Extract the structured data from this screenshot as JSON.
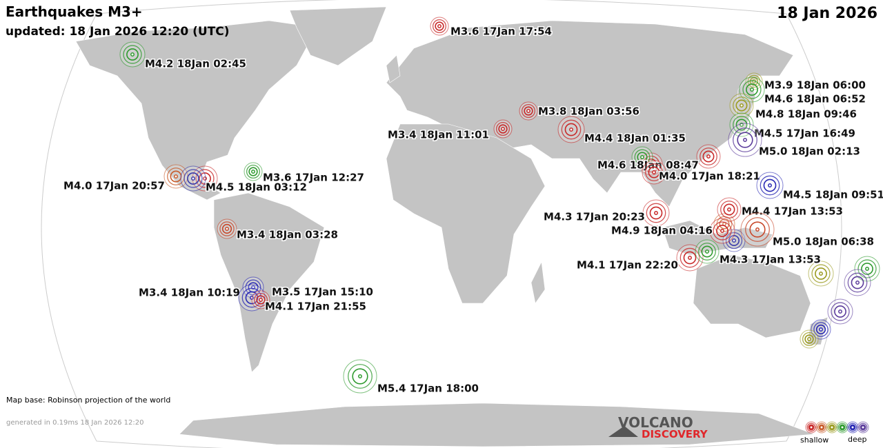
{
  "header": {
    "title": "Earthquakes M3+",
    "updated": "updated: 18 Jan 2026 12:20 (UTC)",
    "date": "18 Jan 2026"
  },
  "quakes": [
    {
      "label": "M3.6 17Jan 17:54",
      "color": "#c82828"
    },
    {
      "label": "M4.2 18Jan 02:45",
      "color": "#2e9a2e"
    },
    {
      "label": "M3.9 18Jan 06:00",
      "color": "#9a9a1e"
    },
    {
      "label": "M4.6 18Jan 06:52",
      "color": "#2e9a2e"
    },
    {
      "label": "M4.8 18Jan 09:46",
      "color": "#9a9a1e"
    },
    {
      "label": "M3.8 18Jan 03:56",
      "color": "#c82828"
    },
    {
      "label": "M4.5 17Jan 16:49",
      "color": "#2e9a2e"
    },
    {
      "label": "M3.4 18Jan 11:01",
      "color": "#c82828"
    },
    {
      "label": "M4.4 18Jan 01:35",
      "color": "#c82828"
    },
    {
      "label": "M5.0 18Jan 02:13",
      "color": "#5a3a9a"
    },
    {
      "label": "M4.6 18Jan 08:47",
      "color": "#2e9a2e"
    },
    {
      "label": "M4.0 17Jan 18:21",
      "color": "#c82828"
    },
    {
      "label": "M3.6 17Jan 12:27",
      "color": "#2e9a2e"
    },
    {
      "label": "M4.0 17Jan 20:57",
      "color": "#c85a28"
    },
    {
      "label": "M4.5 18Jan 03:12",
      "color": "#3a3aaa"
    },
    {
      "label": "M4.5 18Jan 09:51",
      "color": "#2828b4"
    },
    {
      "label": "M4.4 17Jan 13:53",
      "color": "#c82828"
    },
    {
      "label": "M4.3 17Jan 20:23",
      "color": "#c82828"
    },
    {
      "label": "M3.4 18Jan 03:28",
      "color": "#c84628"
    },
    {
      "label": "M4.9 18Jan 04:16",
      "color": "#c82828"
    },
    {
      "label": "M5.0 18Jan 06:38",
      "color": "#c84628"
    },
    {
      "label": "M4.1 17Jan 22:20",
      "color": "#c82828"
    },
    {
      "label": "M4.3 17Jan 13:53",
      "color": "#2e9a2e"
    },
    {
      "label": "M3.4 18Jan 10:19",
      "color": "#2828b4"
    },
    {
      "label": "M3.5 17Jan 15:10",
      "color": "#2828b4"
    },
    {
      "label": "M4.1 17Jan 21:55",
      "color": "#c82828"
    },
    {
      "label": "M5.4 17Jan 18:00",
      "color": "#2e9a2e"
    }
  ],
  "footer": {
    "projection": "Map base: Robinson projection of the world",
    "generated": "generated in 0.19ms 18 Jan 2026 12:20",
    "logo_top": "VOLCANO",
    "logo_bottom": "DISCOVERY",
    "shallow": "shallow",
    "deep": "deep"
  }
}
